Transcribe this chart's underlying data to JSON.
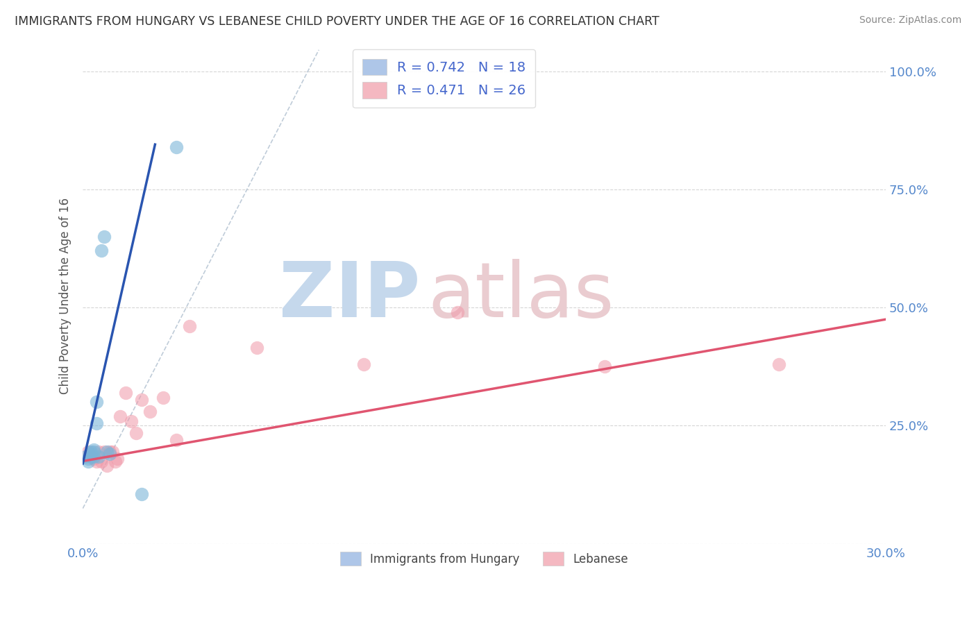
{
  "title": "IMMIGRANTS FROM HUNGARY VS LEBANESE CHILD POVERTY UNDER THE AGE OF 16 CORRELATION CHART",
  "source": "Source: ZipAtlas.com",
  "ylabel": "Child Poverty Under the Age of 16",
  "xlim": [
    0.0,
    0.3
  ],
  "ylim": [
    0.0,
    1.05
  ],
  "xticks": [
    0.0,
    0.3
  ],
  "xticklabels": [
    "0.0%",
    "30.0%"
  ],
  "yticks": [
    0.0,
    0.25,
    0.5,
    0.75,
    1.0
  ],
  "yticklabels_right": [
    "",
    "25.0%",
    "50.0%",
    "75.0%",
    "100.0%"
  ],
  "legend1_label": "R = 0.742   N = 18",
  "legend2_label": "R = 0.471   N = 26",
  "legend1_color": "#aec6e8",
  "legend2_color": "#f4b8c1",
  "hungary_color": "#7ab4d8",
  "lebanese_color": "#f098a8",
  "hungary_line_color": "#2a55b0",
  "lebanese_line_color": "#e05570",
  "hungary_x": [
    0.001,
    0.002,
    0.002,
    0.003,
    0.003,
    0.003,
    0.004,
    0.004,
    0.004,
    0.005,
    0.005,
    0.006,
    0.007,
    0.008,
    0.009,
    0.01,
    0.022,
    0.035
  ],
  "hungary_y": [
    0.185,
    0.18,
    0.175,
    0.19,
    0.195,
    0.185,
    0.2,
    0.185,
    0.195,
    0.3,
    0.255,
    0.185,
    0.62,
    0.65,
    0.195,
    0.19,
    0.105,
    0.84
  ],
  "lebanese_x": [
    0.002,
    0.003,
    0.004,
    0.005,
    0.006,
    0.007,
    0.008,
    0.009,
    0.01,
    0.011,
    0.012,
    0.013,
    0.014,
    0.016,
    0.018,
    0.02,
    0.022,
    0.025,
    0.03,
    0.035,
    0.04,
    0.065,
    0.105,
    0.14,
    0.195,
    0.26
  ],
  "lebanese_y": [
    0.195,
    0.185,
    0.18,
    0.175,
    0.195,
    0.175,
    0.195,
    0.165,
    0.195,
    0.195,
    0.175,
    0.18,
    0.27,
    0.32,
    0.26,
    0.235,
    0.305,
    0.28,
    0.31,
    0.22,
    0.46,
    0.415,
    0.38,
    0.49,
    0.375,
    0.38
  ],
  "hungary_line_x": [
    0.0,
    0.027
  ],
  "hungary_line_y_start": 0.17,
  "hungary_line_slope": 25.0,
  "lebanese_line_x": [
    0.0,
    0.3
  ],
  "lebanese_line_y_start": 0.175,
  "lebanese_line_slope": 1.0,
  "dash_line_slope": 11.0,
  "dash_line_intercept": 0.075,
  "grid_color": "#cccccc",
  "background_color": "#ffffff",
  "title_color": "#333333",
  "axis_label_color": "#555555",
  "tick_label_color": "#5588cc",
  "watermark_zip_color": "#c5d8ec",
  "watermark_atlas_color": "#eaccd0"
}
